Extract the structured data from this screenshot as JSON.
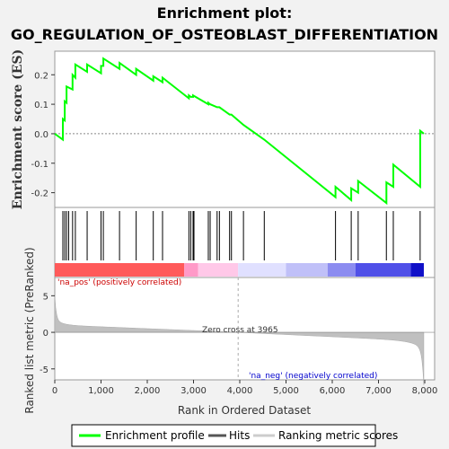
{
  "chart_data": {
    "title_line1": "Enrichment plot:",
    "title_line2": "GO_REGULATION_OF_OSTEOBLAST_DIFFERENTIATION",
    "type": "line",
    "xlabel": "Rank in Ordered Dataset",
    "es_ylabel": "Enrichment score (ES)",
    "metric_ylabel": "Ranked list metric (PreRanked)",
    "xlim": [
      0,
      8000
    ],
    "x_ticks": [
      "0",
      "1,000",
      "2,000",
      "3,000",
      "4,000",
      "5,000",
      "6,000",
      "7,000",
      "8,000"
    ],
    "x_tick_values": [
      0,
      1000,
      2000,
      3000,
      4000,
      5000,
      6000,
      7000,
      8000
    ],
    "es_ylim": [
      -0.25,
      0.28
    ],
    "es_ticks": [
      "0.2",
      "0.1",
      "0.0",
      "-0.1",
      "-0.2"
    ],
    "es_tick_values": [
      0.2,
      0.1,
      0.0,
      -0.1,
      -0.2
    ],
    "metric_ylim": [
      -6.5,
      7.5
    ],
    "metric_ticks": [
      "5",
      "0",
      "-5"
    ],
    "metric_tick_values": [
      5,
      0,
      -5
    ],
    "zero_cross_label": "Zero cross at 3965",
    "zero_cross": 3965,
    "pos_label": "'na_pos' (positively correlated)",
    "neg_label": "'na_neg' (negatively correlated)",
    "hits": [
      175,
      215,
      255,
      300,
      385,
      445,
      700,
      1000,
      1050,
      1400,
      1760,
      2130,
      2330,
      2900,
      2940,
      2990,
      3010,
      3320,
      3360,
      3510,
      3560,
      3780,
      3820,
      4080,
      4530,
      6070,
      6410,
      6560,
      7170,
      7320,
      7900
    ],
    "es_points": [
      [
        0,
        0.0
      ],
      [
        175,
        -0.02
      ],
      [
        175,
        0.05
      ],
      [
        215,
        0.045
      ],
      [
        215,
        0.11
      ],
      [
        255,
        0.105
      ],
      [
        255,
        0.16
      ],
      [
        385,
        0.15
      ],
      [
        385,
        0.2
      ],
      [
        445,
        0.19
      ],
      [
        445,
        0.235
      ],
      [
        700,
        0.21
      ],
      [
        700,
        0.235
      ],
      [
        1000,
        0.205
      ],
      [
        1000,
        0.23
      ],
      [
        1050,
        0.23
      ],
      [
        1050,
        0.255
      ],
      [
        1400,
        0.22
      ],
      [
        1400,
        0.24
      ],
      [
        1760,
        0.2
      ],
      [
        1760,
        0.22
      ],
      [
        2130,
        0.18
      ],
      [
        2130,
        0.195
      ],
      [
        2330,
        0.175
      ],
      [
        2330,
        0.19
      ],
      [
        2900,
        0.12
      ],
      [
        2900,
        0.13
      ],
      [
        2940,
        0.125
      ],
      [
        2990,
        0.125
      ],
      [
        2990,
        0.13
      ],
      [
        3320,
        0.1
      ],
      [
        3320,
        0.105
      ],
      [
        3360,
        0.1
      ],
      [
        3510,
        0.09
      ],
      [
        3560,
        0.09
      ],
      [
        3780,
        0.065
      ],
      [
        3820,
        0.065
      ],
      [
        4080,
        0.03
      ],
      [
        4530,
        -0.02
      ],
      [
        6070,
        -0.215
      ],
      [
        6070,
        -0.18
      ],
      [
        6410,
        -0.225
      ],
      [
        6410,
        -0.185
      ],
      [
        6560,
        -0.2
      ],
      [
        6560,
        -0.16
      ],
      [
        7170,
        -0.235
      ],
      [
        7170,
        -0.165
      ],
      [
        7320,
        -0.18
      ],
      [
        7320,
        -0.105
      ],
      [
        7900,
        -0.18
      ],
      [
        7900,
        0.01
      ],
      [
        7980,
        0.0
      ]
    ],
    "heat_segments": [
      {
        "x0": 0,
        "x1": 2800,
        "color": "#ff5a5a"
      },
      {
        "x0": 2800,
        "x1": 3100,
        "color": "#ff9ac8"
      },
      {
        "x0": 3100,
        "x1": 3965,
        "color": "#ffc8e8"
      },
      {
        "x0": 3965,
        "x1": 5000,
        "color": "#e0e0ff"
      },
      {
        "x0": 5000,
        "x1": 5900,
        "color": "#c0c0f8"
      },
      {
        "x0": 5900,
        "x1": 6500,
        "color": "#8c8cf0"
      },
      {
        "x0": 6500,
        "x1": 7700,
        "color": "#5050e8"
      },
      {
        "x0": 7700,
        "x1": 7980,
        "color": "#1010c8"
      }
    ],
    "colors": {
      "es_line": "#00ff00",
      "hits": "#000000",
      "metric_fill": "#c0c0c0",
      "pos_text": "#cc0000",
      "neg_text": "#0000cc"
    },
    "legend": [
      {
        "label": "Enrichment profile",
        "color": "#00ff00"
      },
      {
        "label": "Hits",
        "color": "#555555"
      },
      {
        "label": "Ranking metric scores",
        "color": "#cccccc"
      }
    ]
  }
}
